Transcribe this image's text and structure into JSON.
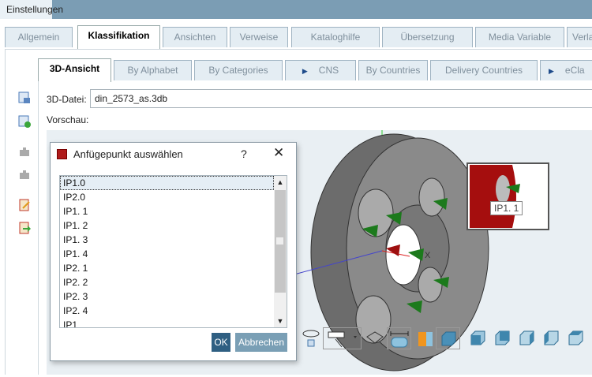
{
  "window": {
    "title": "Einstellungen"
  },
  "main_tabs": [
    {
      "label": "Allgemein"
    },
    {
      "label": "Klassifikation",
      "active": true
    },
    {
      "label": "Ansichten"
    },
    {
      "label": "Verweise"
    },
    {
      "label": "Kataloghilfe"
    },
    {
      "label": "Übersetzung"
    },
    {
      "label": "Media Variable"
    },
    {
      "label": "Verlauf"
    }
  ],
  "sub_tabs": [
    {
      "label": "3D-Ansicht",
      "active": true
    },
    {
      "label": "By Alphabet"
    },
    {
      "label": "By Categories"
    },
    {
      "label": "CNS",
      "icon": "play-arrow-icon"
    },
    {
      "label": "By Countries"
    },
    {
      "label": "Delivery Countries"
    },
    {
      "label": "eCla",
      "icon": "play-arrow-icon"
    }
  ],
  "form": {
    "file_label": "3D-Datei:",
    "file_value": "din_2573_as.3db",
    "preview_label": "Vorschau:"
  },
  "viewer": {
    "axis_x_label": "X",
    "tooltip": "IP1. 1",
    "highlight_color": "#a50e0e"
  },
  "dialog": {
    "title": "Anfügepunkt auswählen",
    "help": "?",
    "items": [
      "IP1.0",
      "IP2.0",
      "IP1. 1",
      "IP1. 2",
      "IP1. 3",
      "IP1. 4",
      "IP2. 1",
      "IP2. 2",
      "IP2. 3",
      "IP2. 4",
      "IP1"
    ],
    "selected": "IP1.0",
    "ok": "OK",
    "cancel": "Abbrechen",
    "ok_color": "#2f5f82",
    "cancel_color": "#7a9fb5"
  }
}
